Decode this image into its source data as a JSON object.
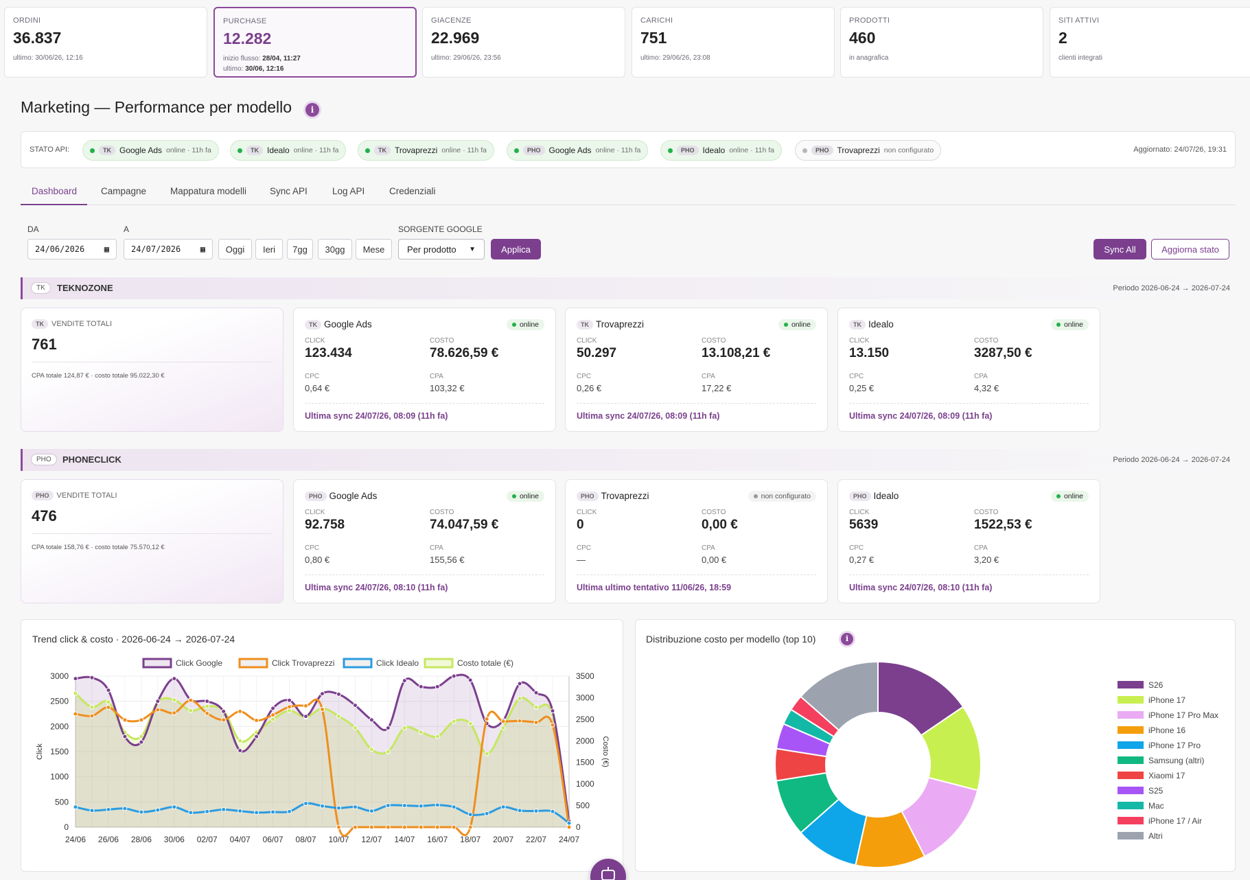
{
  "kpis": [
    {
      "label": "ORDINI",
      "value": "36.837",
      "sub1": "ultimo: 30/06/26, 12:16",
      "sub2": ""
    },
    {
      "label": "PURCHASE",
      "value": "12.282",
      "sub1_prefix": "inizio flusso: ",
      "sub1_bold": "28/04, 11:27",
      "sub2_prefix": "ultimo: ",
      "sub2_bold": "30/06, 12:16"
    },
    {
      "label": "GIACENZE",
      "value": "22.969",
      "sub1": "ultimo: 29/06/26, 23:56"
    },
    {
      "label": "CARICHI",
      "value": "751",
      "sub1": "ultimo: 29/06/26, 23:08"
    },
    {
      "label": "PRODOTTI",
      "value": "460",
      "sub1": "in anagrafica"
    },
    {
      "label": "SITI ATTIVI",
      "value": "2",
      "sub1": "clienti integrati"
    }
  ],
  "page_title": "Marketing — Performance per modello",
  "info_glyph": "i",
  "status": {
    "label": "STATO API:",
    "updated": "Aggiornato: 24/07/26, 19:31",
    "pills": [
      {
        "tag": "TK",
        "name": "Google Ads",
        "state": "online · 11h fa",
        "online": true
      },
      {
        "tag": "TK",
        "name": "Idealo",
        "state": "online · 11h fa",
        "online": true
      },
      {
        "tag": "TK",
        "name": "Trovaprezzi",
        "state": "online · 11h fa",
        "online": true
      },
      {
        "tag": "PHO",
        "name": "Google Ads",
        "state": "online · 11h fa",
        "online": true
      },
      {
        "tag": "PHO",
        "name": "Idealo",
        "state": "online · 11h fa",
        "online": true
      },
      {
        "tag": "PHO",
        "name": "Trovaprezzi",
        "state": "non configurato",
        "online": false
      }
    ]
  },
  "tabs": [
    "Dashboard",
    "Campagne",
    "Mappatura modelli",
    "Sync API",
    "Log API",
    "Credenziali"
  ],
  "filters": {
    "from_label": "DA",
    "from_value": "24/06/2026",
    "to_label": "A",
    "to_value": "24/07/2026",
    "quick": [
      "Oggi",
      "Ieri",
      "7gg",
      "30gg",
      "Mese"
    ],
    "source_label": "SORGENTE GOOGLE",
    "source_value": "Per prodotto",
    "apply": "Applica",
    "sync_all": "Sync All",
    "refresh": "Aggiorna stato"
  },
  "sections": [
    {
      "tag": "TK",
      "name": "TEKNOZONE",
      "period": "Periodo 2026-06-24 → 2026-07-24",
      "sales": {
        "label": "VENDITE TOTALI",
        "value": "761",
        "note": "CPA totale 124,87 € · costo totale 95.022,30 €"
      },
      "channels": [
        {
          "name": "Google Ads",
          "status": "online",
          "online": true,
          "click": "123.434",
          "costo": "78.626,59 €",
          "cpc": "0,64 €",
          "cpa": "103,32 €",
          "sync": "Ultima sync 24/07/26, 08:09 (11h fa)"
        },
        {
          "name": "Trovaprezzi",
          "status": "online",
          "online": true,
          "click": "50.297",
          "costo": "13.108,21 €",
          "cpc": "0,26 €",
          "cpa": "17,22 €",
          "sync": "Ultima sync 24/07/26, 08:09 (11h fa)"
        },
        {
          "name": "Idealo",
          "status": "online",
          "online": true,
          "click": "13.150",
          "costo": "3287,50 €",
          "cpc": "0,25 €",
          "cpa": "4,32 €",
          "sync": "Ultima sync 24/07/26, 08:09 (11h fa)"
        }
      ]
    },
    {
      "tag": "PHO",
      "name": "PHONECLICK",
      "period": "Periodo 2026-06-24 → 2026-07-24",
      "sales": {
        "label": "VENDITE TOTALI",
        "value": "476",
        "note": "CPA totale 158,76 € · costo totale 75.570,12 €"
      },
      "channels": [
        {
          "name": "Google Ads",
          "status": "online",
          "online": true,
          "click": "92.758",
          "costo": "74.047,59 €",
          "cpc": "0,80 €",
          "cpa": "155,56 €",
          "sync": "Ultima sync 24/07/26, 08:10 (11h fa)"
        },
        {
          "name": "Trovaprezzi",
          "status": "non configurato",
          "online": false,
          "click": "0",
          "costo": "0,00 €",
          "cpc": "—",
          "cpa": "0,00 €",
          "sync": "Ultima ultimo tentativo 11/06/26, 18:59"
        },
        {
          "name": "Idealo",
          "status": "online",
          "online": true,
          "click": "5639",
          "costo": "1522,53 €",
          "cpc": "0,27 €",
          "cpa": "3,20 €",
          "sync": "Ultima sync 24/07/26, 08:10 (11h fa)"
        }
      ]
    }
  ],
  "metric_labels": {
    "click": "CLICK",
    "costo": "COSTO",
    "cpc": "CPC",
    "cpa": "CPA"
  },
  "chart_data": [
    {
      "type": "line",
      "title": "Trend click & costo · 2026-06-24 → 2026-07-24",
      "x": [
        "24/06",
        "25/06",
        "26/06",
        "27/06",
        "28/06",
        "29/06",
        "30/06",
        "01/07",
        "02/07",
        "03/07",
        "04/07",
        "05/07",
        "06/07",
        "07/07",
        "08/07",
        "09/07",
        "10/07",
        "11/07",
        "12/07",
        "13/07",
        "14/07",
        "15/07",
        "16/07",
        "17/07",
        "18/07",
        "19/07",
        "20/07",
        "21/07",
        "22/07",
        "23/07",
        "24/07"
      ],
      "xticks": [
        "24/06",
        "26/06",
        "28/06",
        "30/06",
        "02/07",
        "04/07",
        "06/07",
        "08/07",
        "10/07",
        "12/07",
        "14/07",
        "16/07",
        "18/07",
        "20/07",
        "22/07",
        "24/07"
      ],
      "ylabel": "Click",
      "y2label": "Costo (€)",
      "ylim": [
        0,
        3000
      ],
      "y2lim": [
        0,
        3500
      ],
      "yticks": [
        0,
        500,
        1000,
        1500,
        2000,
        2500,
        3000
      ],
      "y2ticks": [
        0,
        500,
        1000,
        1500,
        2000,
        2500,
        3000,
        3500
      ],
      "legend_position": "top",
      "series": [
        {
          "name": "Click Google",
          "axis": "left",
          "color": "#7b3f8e",
          "fill": "rgba(123,63,142,0.13)",
          "values": [
            2950,
            2970,
            2720,
            1800,
            1690,
            2500,
            2950,
            2530,
            2500,
            2300,
            1520,
            1800,
            2360,
            2520,
            2200,
            2650,
            2640,
            2420,
            2130,
            1970,
            2910,
            2790,
            2790,
            3000,
            2920,
            2060,
            2120,
            2850,
            2670,
            2310,
            120
          ]
        },
        {
          "name": "Click Trovaprezzi",
          "axis": "left",
          "color": "#ef8e1d",
          "fill": null,
          "values": [
            2250,
            2210,
            2380,
            2130,
            2130,
            2330,
            2270,
            2520,
            2260,
            2130,
            2300,
            2120,
            2230,
            2390,
            2410,
            2340,
            0,
            0,
            0,
            0,
            0,
            0,
            0,
            0,
            0,
            2150,
            2100,
            2110,
            2080,
            2030,
            0
          ]
        },
        {
          "name": "Click Idealo",
          "axis": "left",
          "color": "#2b9be0",
          "fill": null,
          "values": [
            400,
            330,
            350,
            370,
            300,
            340,
            400,
            290,
            310,
            350,
            320,
            290,
            300,
            310,
            470,
            420,
            380,
            400,
            320,
            430,
            430,
            420,
            440,
            400,
            250,
            270,
            400,
            330,
            320,
            310,
            80
          ]
        },
        {
          "name": "Costo totale (€)",
          "axis": "right",
          "color": "#c6e760",
          "fill": "rgba(198,231,96,0.25)",
          "values": [
            3100,
            2780,
            2900,
            2200,
            2100,
            2900,
            2950,
            2700,
            2800,
            2700,
            2000,
            2200,
            2500,
            2700,
            2550,
            2750,
            2570,
            2300,
            1800,
            1750,
            2300,
            2200,
            2100,
            2450,
            2400,
            1700,
            2300,
            2980,
            2780,
            2600,
            60
          ]
        }
      ]
    },
    {
      "type": "pie",
      "donut": true,
      "title": "Distribuzione costo per modello (top 10)",
      "legend_position": "right",
      "categories": [
        "S26",
        "iPhone 17",
        "iPhone 17 Pro Max",
        "iPhone 16",
        "iPhone 17 Pro",
        "Samsung (altri)",
        "Xiaomi 17",
        "S25",
        "Mac",
        "iPhone 17 / Air",
        "Altri"
      ],
      "values": [
        15.5,
        13.5,
        13.5,
        11.0,
        10.0,
        9.0,
        5.0,
        4.0,
        2.5,
        2.5,
        13.5
      ],
      "colors": [
        "#7b3f8e",
        "#c8ef50",
        "#eaaaf4",
        "#f59e0b",
        "#0ea5e9",
        "#10b981",
        "#ef4444",
        "#a855f7",
        "#14b8a6",
        "#f43f5e",
        "#9ca3af"
      ]
    }
  ]
}
